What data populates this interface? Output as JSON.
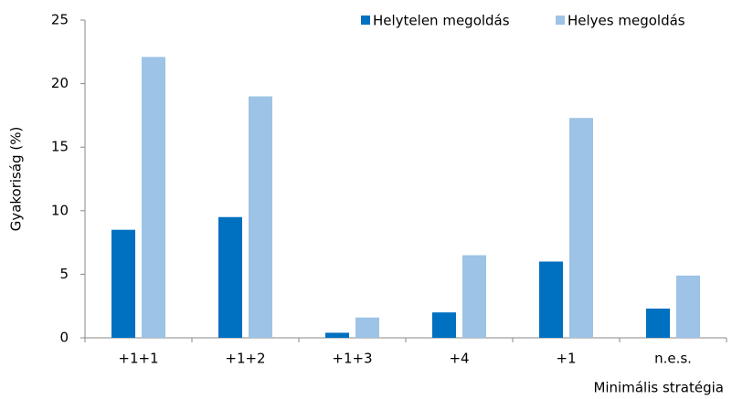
{
  "chart_data": {
    "type": "bar",
    "categories": [
      "+1+1",
      "+1+2",
      "+1+3",
      "+4",
      "+1",
      "n.e.s."
    ],
    "series": [
      {
        "name": "Helytelen megoldás",
        "color": "#0070c0",
        "values": [
          8.5,
          9.5,
          0.4,
          2.0,
          6.0,
          2.3
        ]
      },
      {
        "name": "Helyes megoldás",
        "color": "#9dc3e6",
        "values": [
          22.1,
          19.0,
          1.6,
          6.5,
          17.3,
          4.9
        ]
      }
    ],
    "y_label": "Gyakoriság (%)",
    "x_label": "Minimális stratégia",
    "ylim": [
      0,
      25
    ],
    "yticks": [
      0,
      5,
      10,
      15,
      20,
      25
    ],
    "grid": false,
    "legend": "top-right"
  }
}
